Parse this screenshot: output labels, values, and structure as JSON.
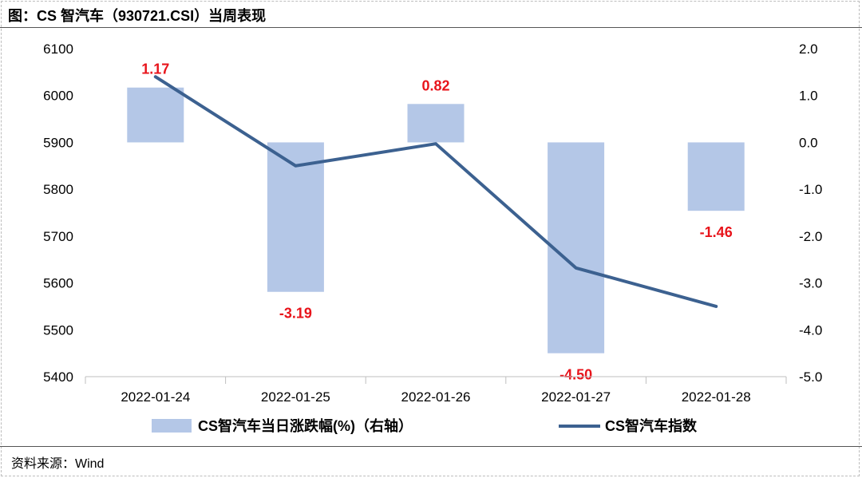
{
  "header": {
    "title": "图：CS 智汽车（930721.CSI）当周表现"
  },
  "footer": {
    "source": "资料来源：Wind"
  },
  "colors": {
    "bar": "#b4c7e7",
    "line": "#3c6190",
    "label": "#e8141b"
  },
  "chart_data": {
    "type": "bar+line",
    "title": "图：CS 智汽车（930721.CSI）当周表现",
    "categories": [
      "2022-01-24",
      "2022-01-25",
      "2022-01-26",
      "2022-01-27",
      "2022-01-28"
    ],
    "series": [
      {
        "name": "CS智汽车当日涨跌幅(%)（右轴）",
        "type": "bar",
        "axis": "right",
        "values": [
          1.17,
          -3.19,
          0.82,
          -4.5,
          -1.46
        ],
        "labels": [
          "1.17",
          "-3.19",
          "0.82",
          "-4.50",
          "-1.46"
        ]
      },
      {
        "name": "CS智汽车指数",
        "type": "line",
        "axis": "left",
        "values": [
          6040,
          5850,
          5897,
          5632,
          5550
        ]
      }
    ],
    "left_axis": {
      "min": 5400,
      "max": 6100,
      "ticks": [
        "6100",
        "6000",
        "5900",
        "5800",
        "5700",
        "5600",
        "5500",
        "5400"
      ]
    },
    "right_axis": {
      "min": -5.0,
      "max": 2.0,
      "ticks": [
        "2.0",
        "1.0",
        "0.0",
        "-1.0",
        "-2.0",
        "-3.0",
        "-4.0",
        "-5.0"
      ]
    },
    "grid": false,
    "legend_position": "bottom"
  }
}
